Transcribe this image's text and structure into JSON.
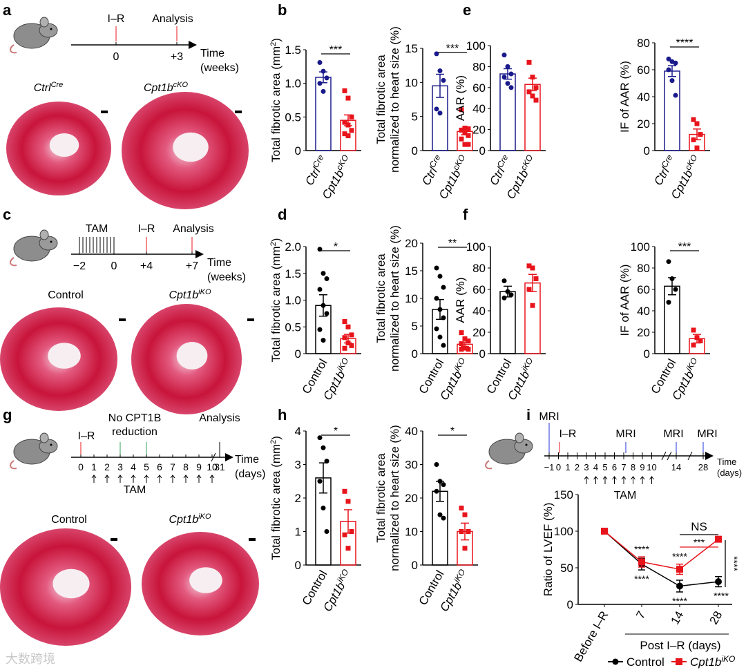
{
  "panel_letters": [
    "a",
    "b",
    "c",
    "d",
    "e",
    "f",
    "g",
    "h",
    "i"
  ],
  "colors": {
    "ctrl_blue": "#1a1a8c",
    "ko_red": "#e8141b",
    "black": "#000000",
    "green": "#2ca05a",
    "tissue": "#c8143a"
  },
  "panel_a": {
    "events": [
      "I–R",
      "Analysis"
    ],
    "ticks": [
      "0",
      "+3"
    ],
    "time_label": [
      "Time",
      "(weeks)"
    ],
    "groups": [
      {
        "base": "Ctrl",
        "sup": "Cre"
      },
      {
        "base": "Cpt1b",
        "sup": "cKO"
      }
    ]
  },
  "panel_c": {
    "events": [
      "TAM",
      "I–R",
      "Analysis"
    ],
    "ticks": [
      "−2",
      "0",
      "+4",
      "+7"
    ],
    "time_label": [
      "Time",
      "(weeks)"
    ],
    "groups": [
      {
        "base": "Control",
        "sup": ""
      },
      {
        "base": "Cpt1b",
        "sup": "iKO"
      }
    ]
  },
  "panel_g": {
    "events": [
      "I–R",
      "No CPT1B",
      "reduction",
      "Analysis",
      "TAM"
    ],
    "ticks": [
      "0",
      "1",
      "2",
      "3",
      "4",
      "5",
      "6",
      "7",
      "8",
      "9",
      "10",
      "31"
    ],
    "time_label": [
      "Time",
      "(days)"
    ],
    "groups": [
      {
        "base": "Control",
        "sup": ""
      },
      {
        "base": "Cpt1b",
        "sup": "iKO"
      }
    ]
  },
  "panel_i_timeline": {
    "events": [
      "MRI",
      "I–R",
      "MRI",
      "MRI",
      "MRI",
      "TAM"
    ],
    "ticks": [
      "−1",
      "0",
      "1",
      "2",
      "3",
      "4",
      "5",
      "6",
      "7",
      "8",
      "9",
      "10",
      "14",
      "28"
    ],
    "time_label": [
      "Time",
      "(days)"
    ]
  },
  "watermark": "大数跨境",
  "chart_data": [
    {
      "id": "b1",
      "type": "bar",
      "ylabel": [
        "Total fibrotic area (mm",
        "2",
        ")"
      ],
      "ylim": [
        0,
        1.5
      ],
      "yticks": [
        "0",
        "0.5",
        "1.0",
        "1.5"
      ],
      "ytick_values": [
        0,
        0.5,
        1.0,
        1.5
      ],
      "categories": [
        {
          "base": "Ctrl",
          "sup": "Cre"
        },
        {
          "base": "Cpt1b",
          "sup": "cKO"
        }
      ],
      "colors": [
        "#1a1a8c",
        "#e8141b"
      ],
      "markers": [
        "circle",
        "square"
      ],
      "means": [
        1.09,
        0.45
      ],
      "sem": [
        0.08,
        0.08
      ],
      "points": [
        [
          1.31,
          1.18,
          1.08,
          1.0,
          0.88
        ],
        [
          0.89,
          0.78,
          0.5,
          0.42,
          0.38,
          0.3,
          0.25,
          0.22
        ]
      ],
      "significance": "***"
    },
    {
      "id": "b2",
      "type": "bar",
      "ylabel": [
        "Total fibrotic area",
        "normalized to heart size (%)"
      ],
      "ylim": [
        0,
        15
      ],
      "yticks": [
        "0",
        "5",
        "10",
        "15"
      ],
      "ytick_values": [
        0,
        5,
        10,
        15
      ],
      "categories": [
        {
          "base": "Ctrl",
          "sup": "Cre"
        },
        {
          "base": "Cpt1b",
          "sup": "cKO"
        }
      ],
      "colors": [
        "#1a1a8c",
        "#e8141b"
      ],
      "markers": [
        "circle",
        "square"
      ],
      "means": [
        9.5,
        2.8
      ],
      "sem": [
        1.7,
        0.5
      ],
      "points": [
        [
          14.2,
          11.7,
          10.3,
          6.1,
          5.5
        ],
        [
          6.0,
          3.3,
          3.2,
          3.0,
          2.6,
          2.2,
          1.7,
          0.9,
          0.9
        ]
      ],
      "significance": "***"
    },
    {
      "id": "e1",
      "type": "bar",
      "ylabel": [
        "AAR (%)"
      ],
      "ylim": [
        0,
        100
      ],
      "yticks": [
        "0",
        "20",
        "40",
        "60",
        "80",
        "100"
      ],
      "ytick_values": [
        0,
        20,
        40,
        60,
        80,
        100
      ],
      "categories": [
        {
          "base": "Ctrl",
          "sup": "Cre"
        },
        {
          "base": "Cpt1b",
          "sup": "cKO"
        }
      ],
      "colors": [
        "#1a1a8c",
        "#e8141b"
      ],
      "markers": [
        "circle",
        "square"
      ],
      "means": [
        73,
        63
      ],
      "sem": [
        5,
        6
      ],
      "points": [
        [
          91,
          80,
          73,
          70,
          64,
          60
        ],
        [
          84,
          70,
          60,
          56,
          52,
          48
        ]
      ],
      "significance": ""
    },
    {
      "id": "e2",
      "type": "bar",
      "ylabel": [
        "IF of AAR (%)"
      ],
      "ylim": [
        0,
        80
      ],
      "yticks": [
        "0",
        "20",
        "40",
        "60",
        "80"
      ],
      "ytick_values": [
        0,
        20,
        40,
        60,
        80
      ],
      "categories": [
        {
          "base": "Ctrl",
          "sup": "Cre"
        },
        {
          "base": "Cpt1b",
          "sup": "cKO"
        }
      ],
      "colors": [
        "#1a1a8c",
        "#e8141b"
      ],
      "markers": [
        "circle",
        "square"
      ],
      "means": [
        59,
        12
      ],
      "sem": [
        4,
        4
      ],
      "points": [
        [
          68,
          66,
          65,
          60,
          52,
          41
        ],
        [
          23,
          20,
          12,
          8,
          2
        ]
      ],
      "significance": "****"
    },
    {
      "id": "d1",
      "type": "bar",
      "ylabel": [
        "Total fibrotic area (mm",
        "2",
        ")"
      ],
      "ylim": [
        0,
        2.0
      ],
      "yticks": [
        "0",
        "0.5",
        "1.0",
        "1.5",
        "2.0"
      ],
      "ytick_values": [
        0,
        0.5,
        1.0,
        1.5,
        2.0
      ],
      "categories": [
        {
          "base": "Control",
          "sup": ""
        },
        {
          "base": "Cpt1b",
          "sup": "iKO"
        }
      ],
      "colors": [
        "#000000",
        "#e8141b"
      ],
      "markers": [
        "circle",
        "square"
      ],
      "means": [
        0.9,
        0.28
      ],
      "sem": [
        0.2,
        0.08
      ],
      "points": [
        [
          1.95,
          1.5,
          1.4,
          1.2,
          0.9,
          0.75,
          0.45,
          0.25
        ],
        [
          0.6,
          0.5,
          0.35,
          0.3,
          0.2,
          0.15,
          0.1
        ]
      ],
      "significance": "*"
    },
    {
      "id": "d2",
      "type": "bar",
      "ylabel": [
        "Total fibrotic area",
        "normalized to heart size (%)"
      ],
      "ylim": [
        0,
        20
      ],
      "yticks": [
        "0",
        "5",
        "10",
        "15",
        "20"
      ],
      "ytick_values": [
        0,
        5,
        10,
        15,
        20
      ],
      "categories": [
        {
          "base": "Control",
          "sup": ""
        },
        {
          "base": "Cpt1b",
          "sup": "iKO"
        }
      ],
      "colors": [
        "#000000",
        "#e8141b"
      ],
      "markers": [
        "circle",
        "square"
      ],
      "means": [
        8,
        1.7
      ],
      "sem": [
        1.8,
        0.4
      ],
      "points": [
        [
          15.5,
          14,
          12,
          10,
          8,
          6.5,
          4.5,
          3,
          1.5
        ],
        [
          3.8,
          2.7,
          2.3,
          1.8,
          1,
          0.8,
          0.8
        ]
      ],
      "significance": "**"
    },
    {
      "id": "f1",
      "type": "bar",
      "ylabel": [
        "AAR (%)"
      ],
      "ylim": [
        0,
        100
      ],
      "yticks": [
        "0",
        "20",
        "40",
        "60",
        "80",
        "100"
      ],
      "ytick_values": [
        0,
        20,
        40,
        60,
        80,
        100
      ],
      "categories": [
        {
          "base": "Control",
          "sup": ""
        },
        {
          "base": "Cpt1b",
          "sup": "iKO"
        }
      ],
      "colors": [
        "#000000",
        "#e8141b"
      ],
      "markers": [
        "circle",
        "square"
      ],
      "means": [
        58,
        66
      ],
      "sem": [
        5,
        8
      ],
      "points": [
        [
          68,
          58,
          55,
          52
        ],
        [
          82,
          80,
          70,
          60,
          45
        ]
      ],
      "significance": ""
    },
    {
      "id": "f2",
      "type": "bar",
      "ylabel": [
        "IF of AAR (%)"
      ],
      "ylim": [
        0,
        100
      ],
      "yticks": [
        "0",
        "20",
        "40",
        "60",
        "80",
        "100"
      ],
      "ytick_values": [
        0,
        20,
        40,
        60,
        80,
        100
      ],
      "categories": [
        {
          "base": "Control",
          "sup": ""
        },
        {
          "base": "Cpt1b",
          "sup": "iKO"
        }
      ],
      "colors": [
        "#000000",
        "#e8141b"
      ],
      "markers": [
        "circle",
        "square"
      ],
      "means": [
        63,
        14
      ],
      "sem": [
        8,
        4
      ],
      "points": [
        [
          86,
          70,
          60,
          48
        ],
        [
          22,
          15,
          12,
          8
        ]
      ],
      "significance": "***"
    },
    {
      "id": "h1",
      "type": "bar",
      "ylabel": [
        "Total fibrotic area (mm",
        "2",
        ")"
      ],
      "ylim": [
        0,
        4
      ],
      "yticks": [
        "0",
        "1",
        "2",
        "3",
        "4"
      ],
      "ytick_values": [
        0,
        1,
        2,
        3,
        4
      ],
      "categories": [
        {
          "base": "Control",
          "sup": ""
        },
        {
          "base": "Cpt1b",
          "sup": "iKO"
        }
      ],
      "colors": [
        "#000000",
        "#e8141b"
      ],
      "markers": [
        "circle",
        "square"
      ],
      "means": [
        2.6,
        1.3
      ],
      "sem": [
        0.45,
        0.35
      ],
      "points": [
        [
          3.8,
          3.5,
          3.1,
          2.5,
          1.7,
          1.0
        ],
        [
          2.2,
          1.9,
          1.0,
          0.9,
          0.5
        ]
      ],
      "significance": "*"
    },
    {
      "id": "h2",
      "type": "bar",
      "ylabel": [
        "Total fibrotic area",
        "normalized to heart size (%)"
      ],
      "ylim": [
        0,
        40
      ],
      "yticks": [
        "0",
        "10",
        "20",
        "30",
        "40"
      ],
      "ytick_values": [
        0,
        10,
        20,
        30,
        40
      ],
      "categories": [
        {
          "base": "Control",
          "sup": ""
        },
        {
          "base": "Cpt1b",
          "sup": "iKO"
        }
      ],
      "colors": [
        "#000000",
        "#e8141b"
      ],
      "markers": [
        "circle",
        "square"
      ],
      "means": [
        22,
        10
      ],
      "sem": [
        3,
        2.5
      ],
      "points": [
        [
          30,
          25,
          24,
          22,
          15,
          14
        ],
        [
          17,
          15,
          10,
          10,
          5
        ]
      ],
      "significance": "*"
    },
    {
      "id": "i",
      "type": "line",
      "ylabel": "Ratio of LVEF (%)",
      "ylim": [
        0,
        150
      ],
      "yticks": [
        "0",
        "50",
        "100",
        "150"
      ],
      "ytick_values": [
        0,
        50,
        100,
        150
      ],
      "x": [
        "Before I–R",
        "7",
        "14",
        "28"
      ],
      "xgroup_label": "Post I–R (days)",
      "series": [
        {
          "name": "Control",
          "sup": "",
          "color": "#000000",
          "marker": "circle",
          "values": [
            100,
            55,
            25,
            31
          ],
          "sem": [
            2,
            8,
            8,
            7
          ],
          "stars": [
            "",
            "****",
            "****",
            "****"
          ]
        },
        {
          "name": "Cpt1b",
          "sup": "iKO",
          "color": "#e8141b",
          "marker": "square",
          "values": [
            100,
            58,
            48,
            89
          ],
          "sem": [
            2,
            7,
            7,
            3
          ],
          "stars": [
            "",
            "****",
            "****",
            ""
          ]
        }
      ],
      "comparisons": [
        {
          "label": "NS",
          "color": "#000000"
        },
        {
          "label": "***",
          "color": "#e8141b"
        },
        {
          "label": "****",
          "color": "#000000"
        }
      ],
      "legend": "bottom"
    }
  ]
}
